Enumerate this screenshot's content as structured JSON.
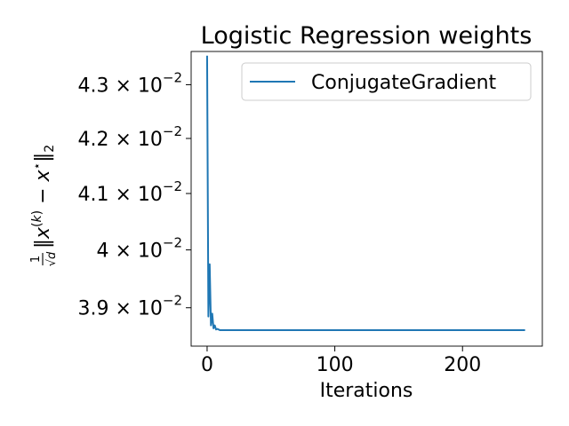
{
  "chart_data": {
    "type": "line",
    "title": "Logistic Regression weights",
    "xlabel": "Iterations",
    "ylabel": "1/√d ‖x(k) − x*‖2",
    "yscale": "log",
    "xlim": [
      -12.5,
      262.5
    ],
    "ylim": [
      0.03835,
      0.04363
    ],
    "x_ticks": [
      0,
      100,
      200
    ],
    "x_tick_labels": [
      "0",
      "100",
      "200"
    ],
    "y_ticks": [
      {
        "value": 0.039,
        "mantissa": "3.9"
      },
      {
        "value": 0.04,
        "mantissa": "4"
      },
      {
        "value": 0.041,
        "mantissa": "4.1"
      },
      {
        "value": 0.042,
        "mantissa": "4.2"
      },
      {
        "value": 0.043,
        "mantissa": "4.3"
      }
    ],
    "tick_base": "10",
    "tick_exponent": "−2",
    "grid": false,
    "legend_position": "top-right",
    "series": [
      {
        "name": "ConjugateGradient",
        "color": "#1f77b4",
        "x": [
          0,
          1,
          2,
          3,
          4,
          5,
          6,
          7,
          8,
          10,
          15,
          20,
          50,
          100,
          150,
          200,
          249
        ],
        "y": [
          0.04355,
          0.03885,
          0.03975,
          0.0387,
          0.0389,
          0.03865,
          0.0387,
          0.03863,
          0.03864,
          0.03862,
          0.03862,
          0.03862,
          0.03862,
          0.03862,
          0.03862,
          0.03862,
          0.03862
        ]
      }
    ]
  }
}
